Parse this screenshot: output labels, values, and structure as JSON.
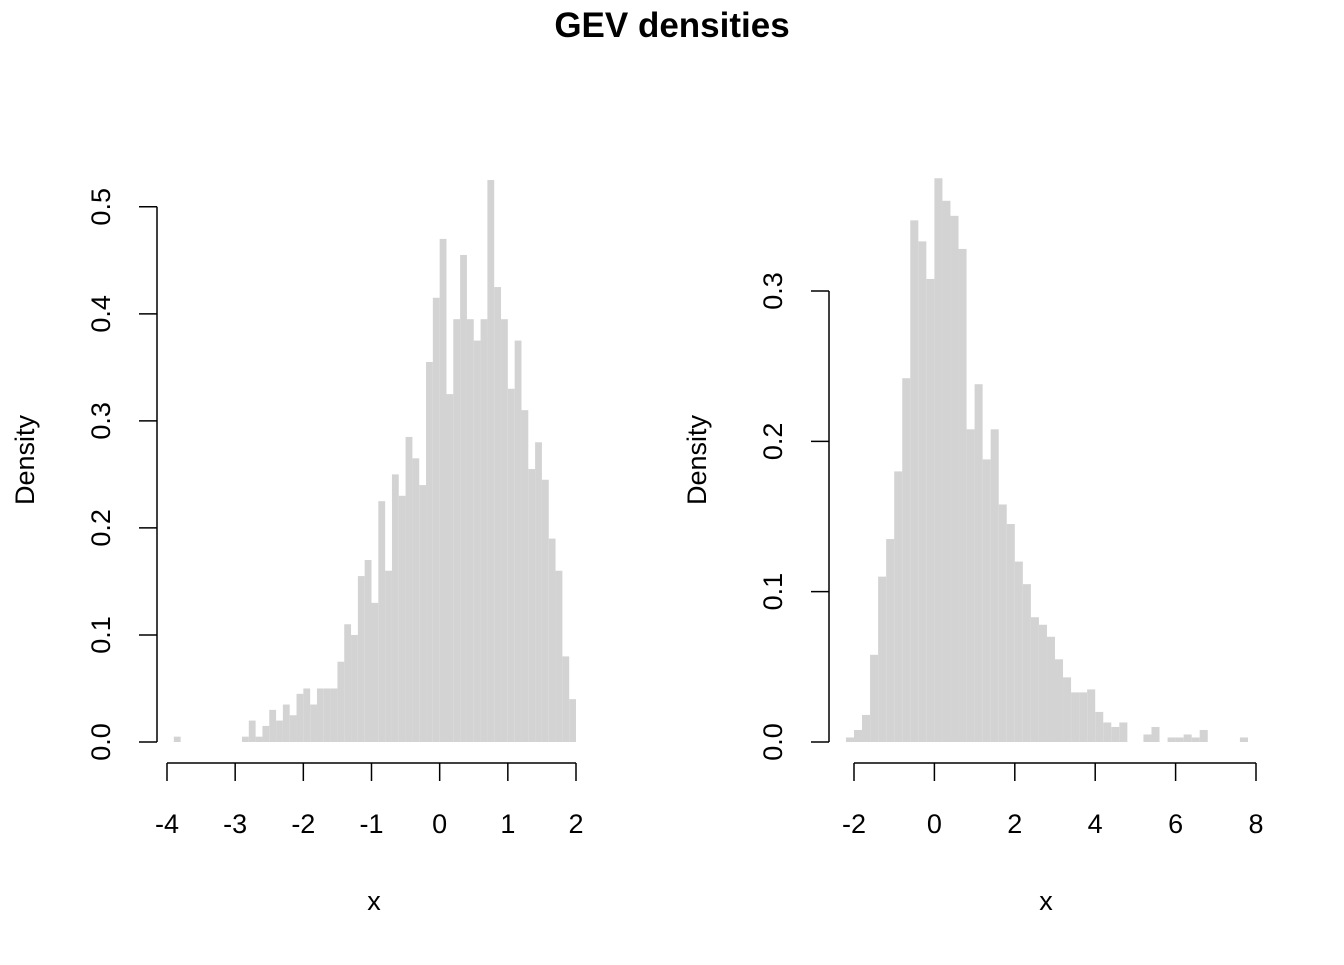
{
  "title": "GEV densities",
  "chart_data": [
    {
      "type": "bar",
      "xlabel": "x",
      "ylabel": "Density",
      "xlim": [
        -4,
        2
      ],
      "ylim": [
        0,
        0.52
      ],
      "xticks": [
        "-4",
        "-3",
        "-2",
        "-1",
        "0",
        "1",
        "2"
      ],
      "yticks": [
        "0.0",
        "0.1",
        "0.2",
        "0.3",
        "0.4",
        "0.5"
      ],
      "bin_start": -4.0,
      "bin_width": 0.1,
      "values": [
        0,
        0.005,
        0,
        0,
        0,
        0,
        0,
        0,
        0,
        0,
        0,
        0.005,
        0.02,
        0.005,
        0.015,
        0.03,
        0.02,
        0.035,
        0.025,
        0.045,
        0.05,
        0.035,
        0.05,
        0.05,
        0.05,
        0.075,
        0.11,
        0.1,
        0.155,
        0.17,
        0.13,
        0.225,
        0.16,
        0.25,
        0.23,
        0.285,
        0.265,
        0.24,
        0.355,
        0.415,
        0.47,
        0.325,
        0.395,
        0.455,
        0.395,
        0.375,
        0.395,
        0.525,
        0.425,
        0.395,
        0.33,
        0.375,
        0.31,
        0.255,
        0.28,
        0.245,
        0.19,
        0.16,
        0.08,
        0.04
      ],
      "color": "#d3d3d3"
    },
    {
      "type": "bar",
      "xlabel": "x",
      "ylabel": "Density",
      "xlim": [
        -2,
        8
      ],
      "ylim": [
        0,
        0.375
      ],
      "xticks": [
        "-2",
        "0",
        "2",
        "4",
        "6",
        "8"
      ],
      "yticks": [
        "0.0",
        "0.1",
        "0.2",
        "0.3"
      ],
      "bin_start": -2.2,
      "bin_width": 0.2,
      "values": [
        0.003,
        0.008,
        0.018,
        0.058,
        0.11,
        0.135,
        0.18,
        0.242,
        0.347,
        0.333,
        0.308,
        0.375,
        0.36,
        0.35,
        0.328,
        0.208,
        0.238,
        0.188,
        0.208,
        0.158,
        0.145,
        0.12,
        0.105,
        0.083,
        0.078,
        0.07,
        0.055,
        0.043,
        0.033,
        0.033,
        0.035,
        0.02,
        0.013,
        0.01,
        0.013,
        0,
        0,
        0.005,
        0.01,
        0,
        0.003,
        0.003,
        0.005,
        0.003,
        0.008,
        0,
        0,
        0,
        0,
        0.003
      ],
      "color": "#d3d3d3"
    }
  ]
}
